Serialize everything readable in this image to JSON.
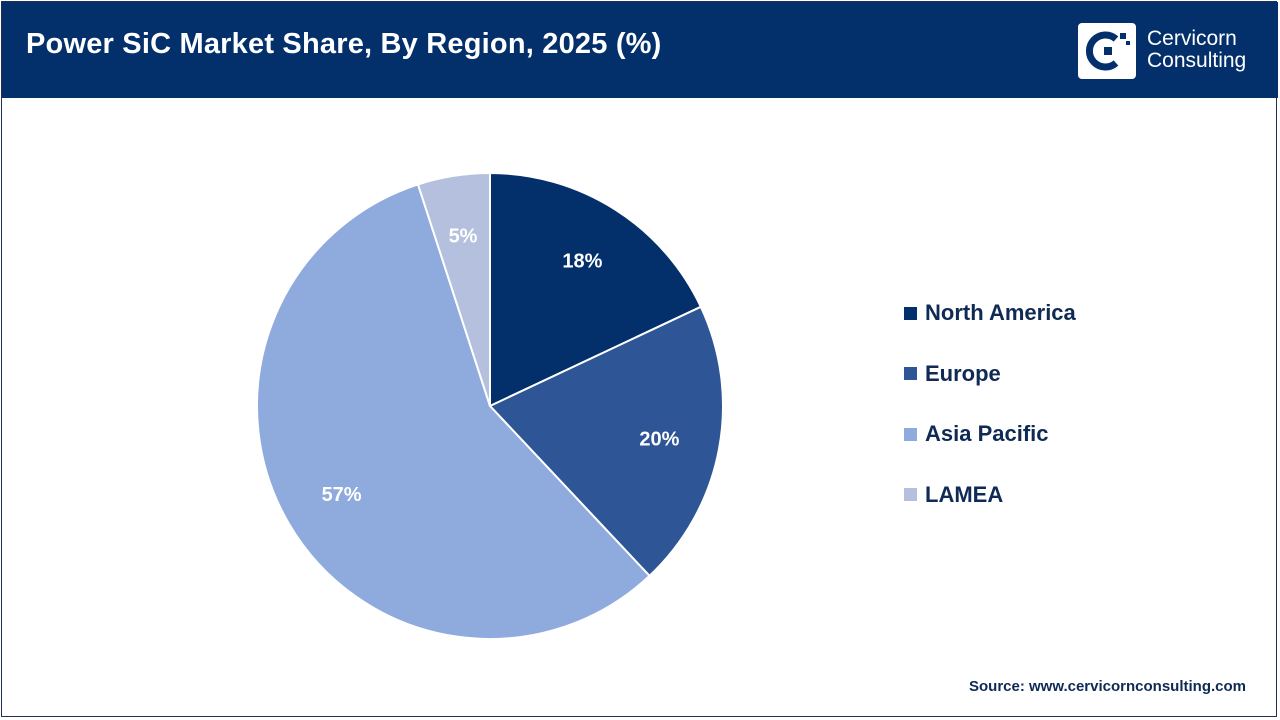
{
  "header": {
    "title": "Power SiC Market Share, By Region, 2025 (%)",
    "logo_line1": "Cervicorn",
    "logo_line2": "Consulting"
  },
  "chart_data": {
    "type": "pie",
    "title": "Power SiC Market Share, By Region, 2025 (%)",
    "slices": [
      {
        "name": "North America",
        "value": 18,
        "label": "18%",
        "color": "#03306b"
      },
      {
        "name": "Europe",
        "value": 20,
        "label": "20%",
        "color": "#2e5596"
      },
      {
        "name": "Asia Pacific",
        "value": 57,
        "label": "57%",
        "color": "#8faadc"
      },
      {
        "name": "LAMEA",
        "value": 5,
        "label": "5%",
        "color": "#b4c0de"
      }
    ],
    "start": "12 o'clock, clockwise",
    "legend_position": "right"
  },
  "legend": {
    "items": [
      "North America",
      "Europe",
      "Asia Pacific",
      "LAMEA"
    ]
  },
  "footer": {
    "source": "Source: www.cervicornconsulting.com"
  }
}
